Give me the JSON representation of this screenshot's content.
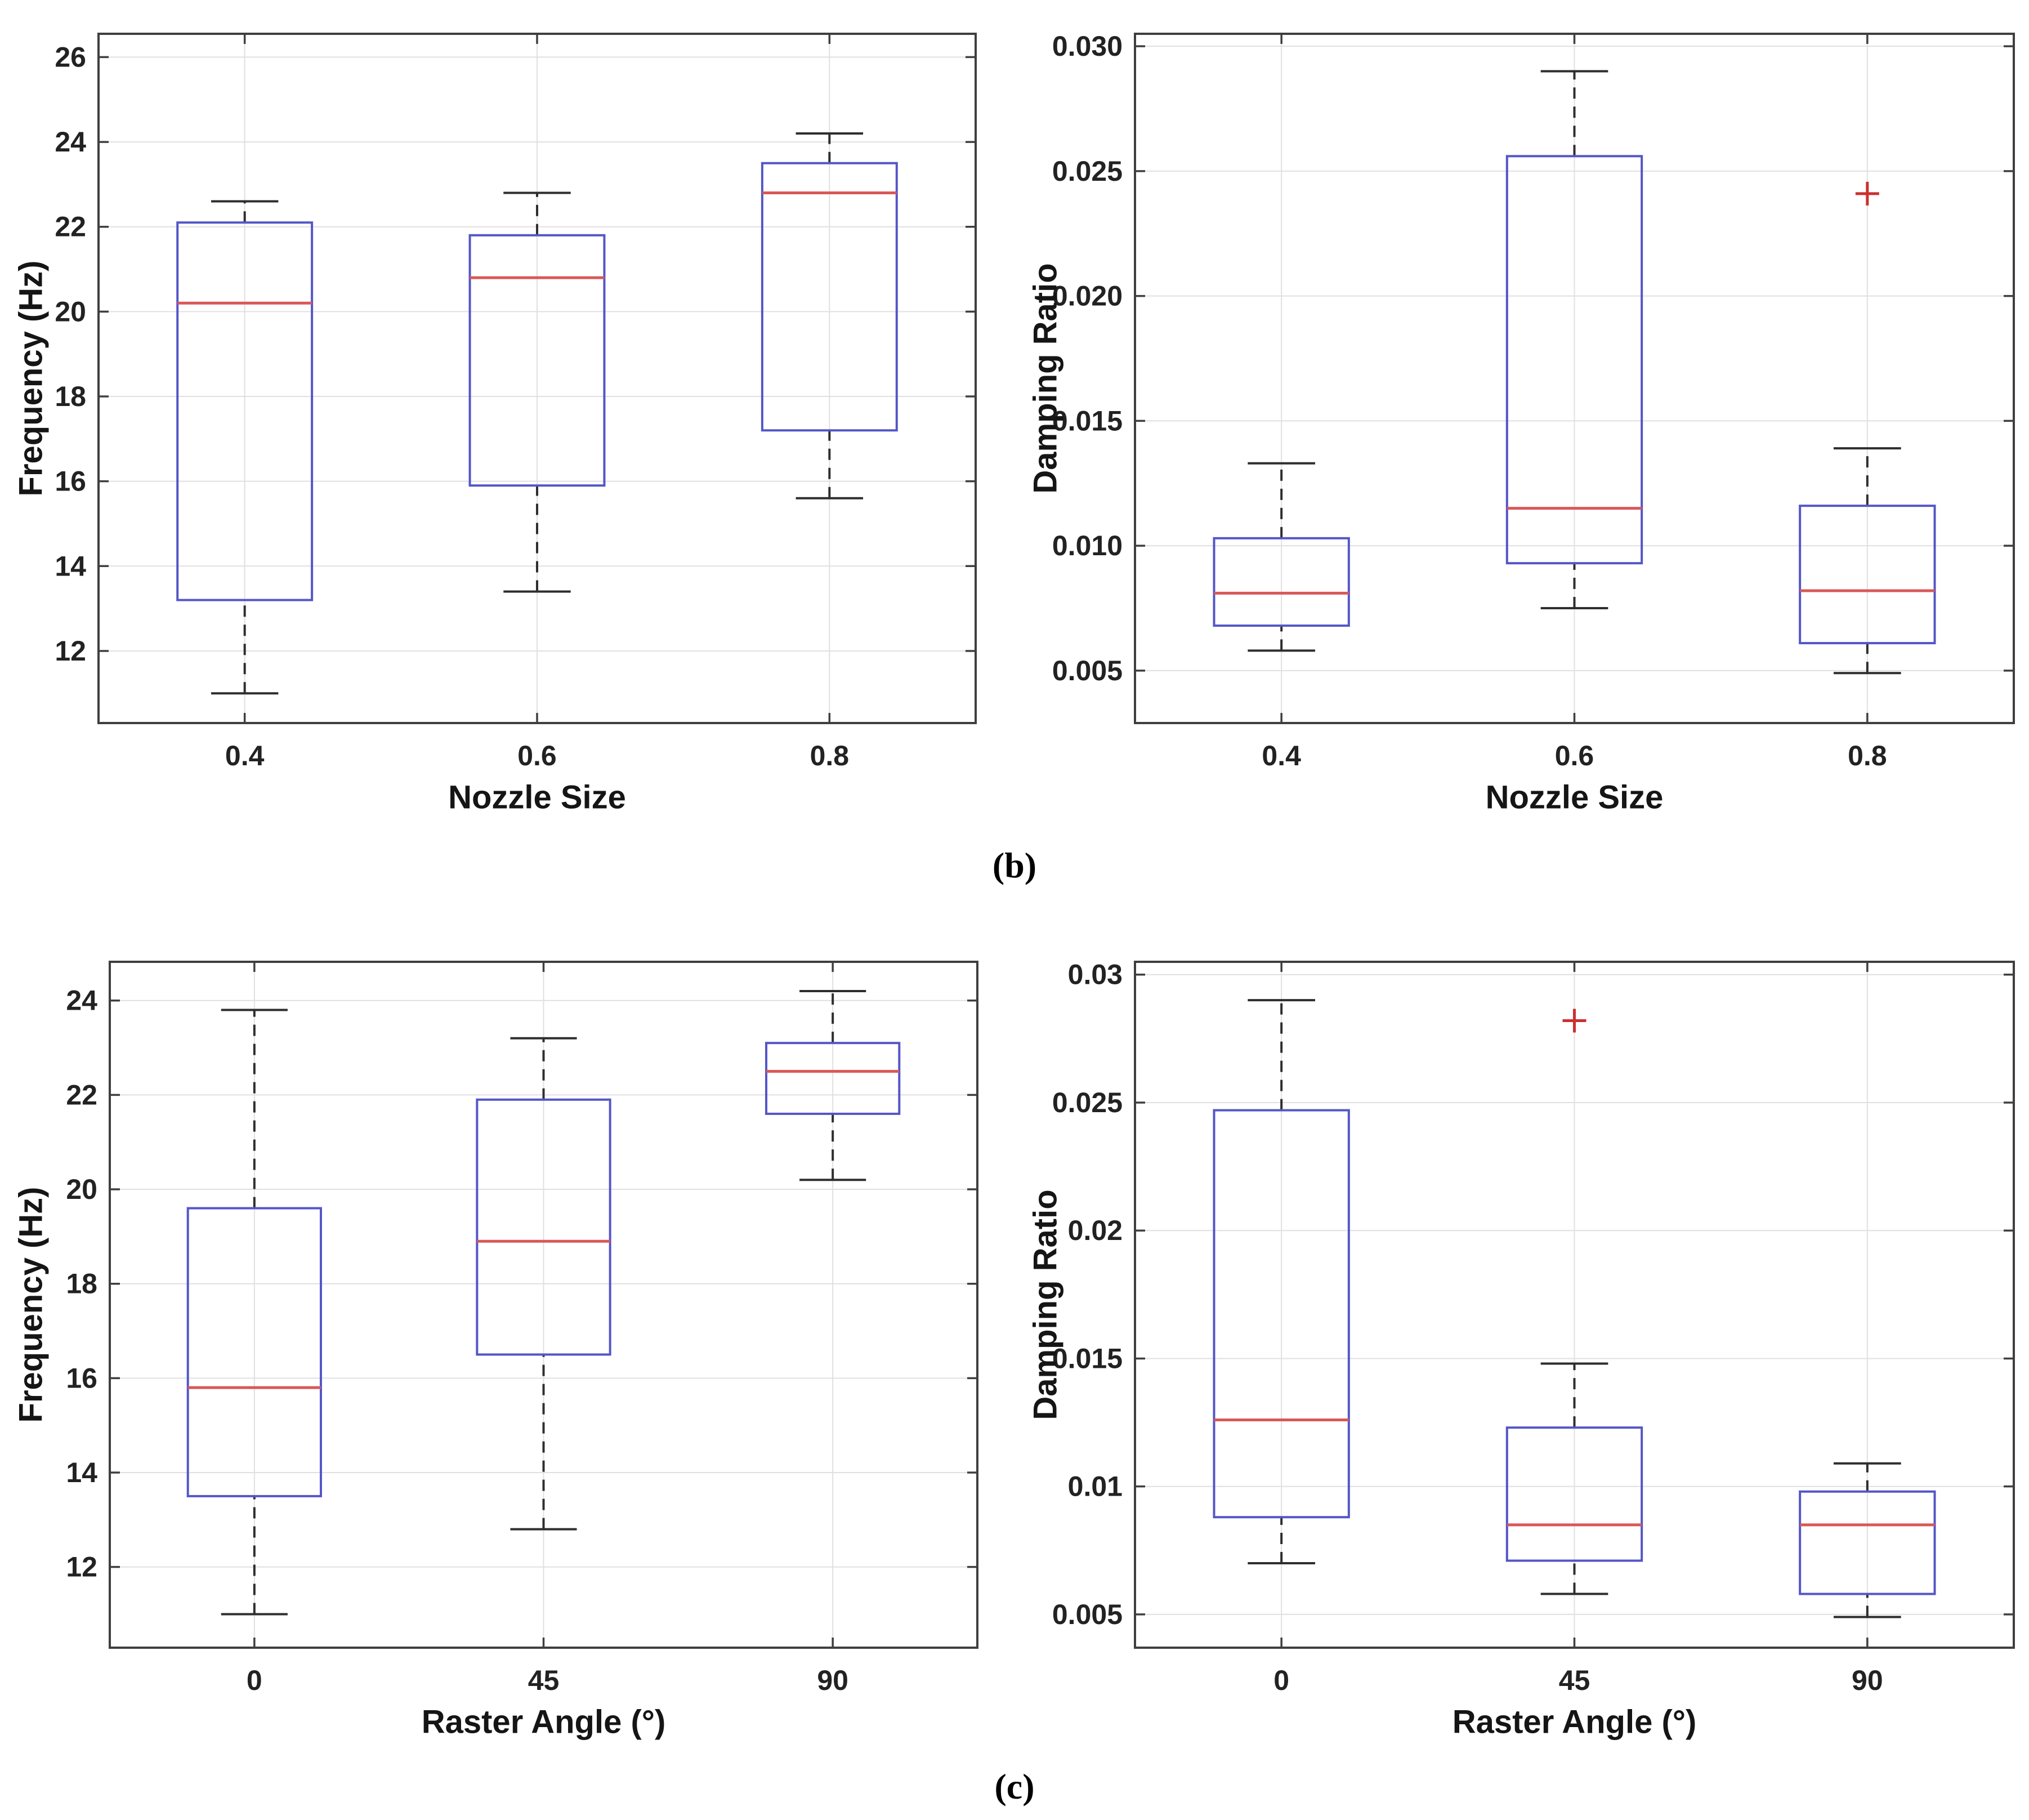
{
  "page": {
    "background": "#ffffff"
  },
  "captions": {
    "b": "(b)",
    "c": "(c)"
  },
  "styles": {
    "spine_color": "#3f3f3f",
    "grid_color": "#e0e0e0",
    "box_color": "#5456c8",
    "median_color": "#d95858",
    "whisker_color": "#2e2e2e",
    "outlier_color": "#cc2f2f",
    "text_color": "#222222"
  },
  "chart_data": [
    {
      "id": "freq-nozzle",
      "type": "bar",
      "plot_kind": "boxplot",
      "title": "",
      "xlabel": "Nozzle Size",
      "ylabel": "Frequency (Hz)",
      "categories": [
        "0.4",
        "0.6",
        "0.8"
      ],
      "ylim": [
        10.3,
        26.55
      ],
      "grid": true,
      "yticks": [
        {
          "v": 12,
          "label": "12"
        },
        {
          "v": 14,
          "label": "14"
        },
        {
          "v": 16,
          "label": "16"
        },
        {
          "v": 18,
          "label": "18"
        },
        {
          "v": 20,
          "label": "20"
        },
        {
          "v": 22,
          "label": "22"
        },
        {
          "v": 24,
          "label": "24"
        },
        {
          "v": 26,
          "label": "26"
        }
      ],
      "boxes": [
        {
          "category": "0.4",
          "whisker_low": 11.0,
          "q1": 13.2,
          "median": 20.2,
          "q3": 22.1,
          "whisker_high": 22.6,
          "outliers": []
        },
        {
          "category": "0.6",
          "whisker_low": 13.4,
          "q1": 15.9,
          "median": 20.8,
          "q3": 21.8,
          "whisker_high": 22.8,
          "outliers": []
        },
        {
          "category": "0.8",
          "whisker_low": 15.6,
          "q1": 17.2,
          "median": 22.8,
          "q3": 23.5,
          "whisker_high": 24.2,
          "outliers": []
        }
      ]
    },
    {
      "id": "damp-nozzle",
      "type": "bar",
      "plot_kind": "boxplot",
      "title": "",
      "xlabel": "Nozzle Size",
      "ylabel": "Damping Ratio",
      "categories": [
        "0.4",
        "0.6",
        "0.8"
      ],
      "ylim": [
        0.0029,
        0.0305
      ],
      "grid": true,
      "yticks": [
        {
          "v": 0.005,
          "label": "0.005"
        },
        {
          "v": 0.01,
          "label": "0.010"
        },
        {
          "v": 0.015,
          "label": "0.015"
        },
        {
          "v": 0.02,
          "label": "0.020"
        },
        {
          "v": 0.025,
          "label": "0.025"
        },
        {
          "v": 0.03,
          "label": "0.030"
        }
      ],
      "boxes": [
        {
          "category": "0.4",
          "whisker_low": 0.0058,
          "q1": 0.0068,
          "median": 0.0081,
          "q3": 0.0103,
          "whisker_high": 0.0133,
          "outliers": []
        },
        {
          "category": "0.6",
          "whisker_low": 0.0075,
          "q1": 0.0093,
          "median": 0.0115,
          "q3": 0.0256,
          "whisker_high": 0.029,
          "outliers": []
        },
        {
          "category": "0.8",
          "whisker_low": 0.0049,
          "q1": 0.0061,
          "median": 0.0082,
          "q3": 0.0116,
          "whisker_high": 0.0139,
          "outliers": [
            0.0241
          ]
        }
      ]
    },
    {
      "id": "freq-raster",
      "type": "bar",
      "plot_kind": "boxplot",
      "title": "",
      "xlabel": "Raster Angle (°)",
      "ylabel": "Frequency (Hz)",
      "categories": [
        "0",
        "45",
        "90"
      ],
      "ylim": [
        10.29,
        24.82
      ],
      "grid": true,
      "yticks": [
        {
          "v": 12,
          "label": "12"
        },
        {
          "v": 14,
          "label": "14"
        },
        {
          "v": 16,
          "label": "16"
        },
        {
          "v": 18,
          "label": "18"
        },
        {
          "v": 20,
          "label": "20"
        },
        {
          "v": 22,
          "label": "22"
        },
        {
          "v": 24,
          "label": "24"
        }
      ],
      "boxes": [
        {
          "category": "0",
          "whisker_low": 11.0,
          "q1": 13.5,
          "median": 15.8,
          "q3": 19.6,
          "whisker_high": 23.8,
          "outliers": []
        },
        {
          "category": "45",
          "whisker_low": 12.8,
          "q1": 16.5,
          "median": 18.9,
          "q3": 21.9,
          "whisker_high": 23.2,
          "outliers": []
        },
        {
          "category": "90",
          "whisker_low": 20.2,
          "q1": 21.6,
          "median": 22.5,
          "q3": 23.1,
          "whisker_high": 24.2,
          "outliers": []
        }
      ]
    },
    {
      "id": "damp-raster",
      "type": "bar",
      "plot_kind": "boxplot",
      "title": "",
      "xlabel": "Raster Angle (°)",
      "ylabel": "Damping Ratio",
      "categories": [
        "0",
        "45",
        "90"
      ],
      "ylim": [
        0.0037,
        0.0305
      ],
      "grid": true,
      "yticks": [
        {
          "v": 0.005,
          "label": "0.005"
        },
        {
          "v": 0.01,
          "label": "0.01"
        },
        {
          "v": 0.015,
          "label": "0.015"
        },
        {
          "v": 0.02,
          "label": "0.02"
        },
        {
          "v": 0.025,
          "label": "0.025"
        },
        {
          "v": 0.03,
          "label": "0.03"
        }
      ],
      "boxes": [
        {
          "category": "0",
          "whisker_low": 0.007,
          "q1": 0.0088,
          "median": 0.0126,
          "q3": 0.0247,
          "whisker_high": 0.029,
          "outliers": []
        },
        {
          "category": "45",
          "whisker_low": 0.0058,
          "q1": 0.0071,
          "median": 0.0085,
          "q3": 0.0123,
          "whisker_high": 0.0148,
          "outliers": [
            0.0282
          ]
        },
        {
          "category": "90",
          "whisker_low": 0.0049,
          "q1": 0.0058,
          "median": 0.0085,
          "q3": 0.0098,
          "whisker_high": 0.0109,
          "outliers": []
        }
      ]
    }
  ]
}
